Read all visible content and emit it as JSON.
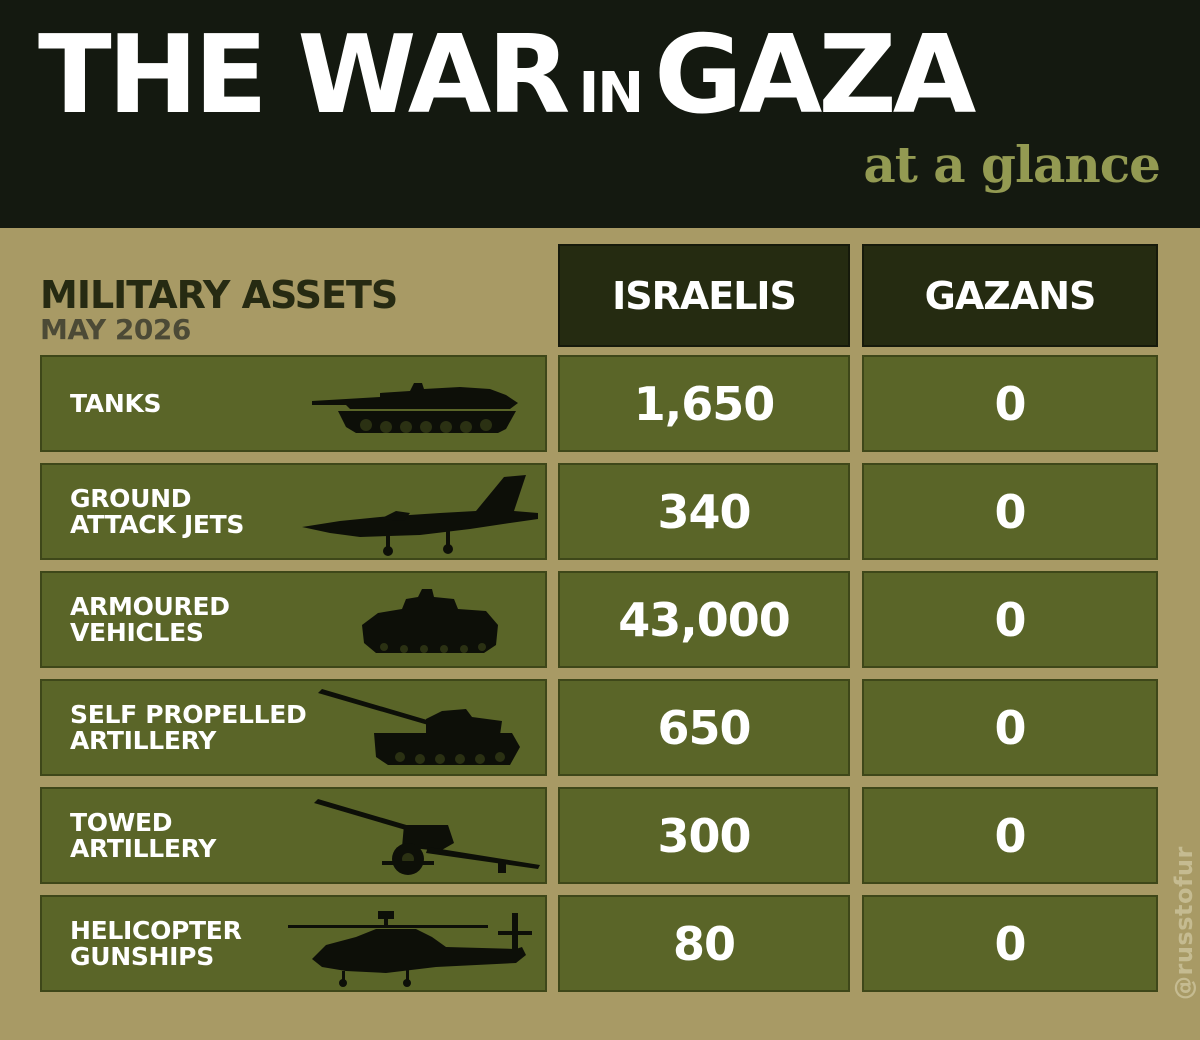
{
  "header": {
    "title_part1": "THE WAR",
    "title_part2": "IN",
    "title_part3": "GAZA",
    "subtitle": "at a glance"
  },
  "section": {
    "title": "MILITARY ASSETS",
    "date": "MAY 2026"
  },
  "columns": {
    "israelis": "ISRAELIS",
    "gazans": "GAZANS"
  },
  "rows": [
    {
      "label": "TANKS",
      "icon": "tank-icon",
      "israelis": "1,650",
      "gazans": "0"
    },
    {
      "label": "GROUND\nATTACK JETS",
      "icon": "fighter-jet-icon",
      "israelis": "340",
      "gazans": "0"
    },
    {
      "label": "ARMOURED\nVEHICLES",
      "icon": "armoured-vehicle-icon",
      "israelis": "43,000",
      "gazans": "0"
    },
    {
      "label": "SELF PROPELLED\nARTILLERY",
      "icon": "self-propelled-artillery-icon",
      "israelis": "650",
      "gazans": "0"
    },
    {
      "label": "TOWED\nARTILLERY",
      "icon": "towed-artillery-icon",
      "israelis": "300",
      "gazans": "0"
    },
    {
      "label": "HELICOPTER\nGUNSHIPS",
      "icon": "helicopter-icon",
      "israelis": "80",
      "gazans": "0"
    }
  ],
  "watermark": "@russtofur",
  "colors": {
    "background": "#a89a65",
    "header": "#141910",
    "accent_olive": "#939a52",
    "cell": "#5a6528",
    "column_header": "#252b11"
  }
}
